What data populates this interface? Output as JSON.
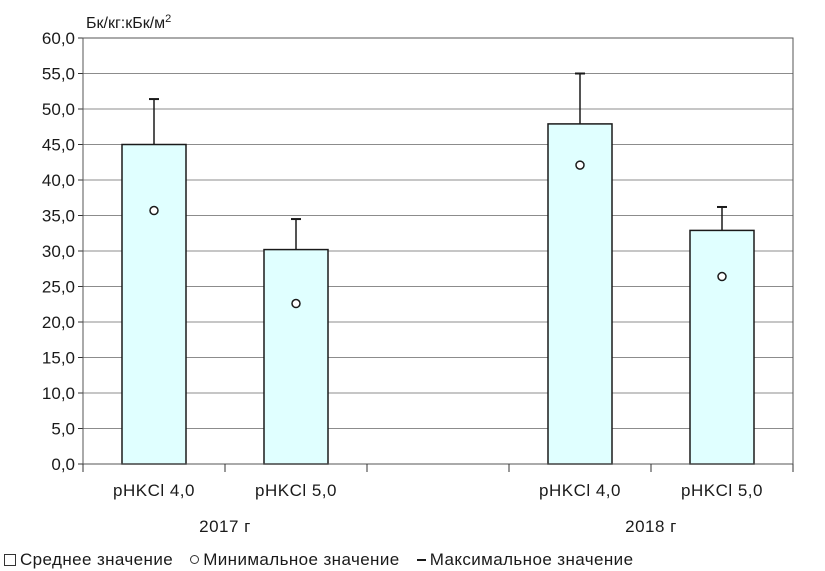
{
  "chart_data": {
    "type": "bar",
    "ylabel_html": "Бк/кг:кБк/м",
    "ylabel_sup": "2",
    "ylim": [
      0,
      60
    ],
    "ytick_labels": [
      "0,0",
      "5,0",
      "10,0",
      "15,0",
      "20,0",
      "25,0",
      "30,0",
      "35,0",
      "40,0",
      "45,0",
      "50,0",
      "55,0",
      "60,0"
    ],
    "groups": [
      "2017 г",
      "2018 г"
    ],
    "categories": [
      "pHKCl  4,0",
      "pHKCl  5,0",
      "pHKCl  4,0",
      "pHKCl  5,0"
    ],
    "series": [
      {
        "name": "Среднее значение",
        "values": [
          45.0,
          30.2,
          47.9,
          32.9
        ]
      },
      {
        "name": "Минимальное значение",
        "values": [
          35.7,
          22.6,
          42.1,
          26.4
        ]
      },
      {
        "name": "Максимальное значение",
        "values": [
          51.4,
          34.5,
          55.0,
          36.2
        ]
      }
    ],
    "bar_color": "#e0ffff",
    "grid": true
  },
  "legend": {
    "mean": "Среднее значение",
    "min": "Минимальное значение",
    "max": "Максимальное значение"
  }
}
